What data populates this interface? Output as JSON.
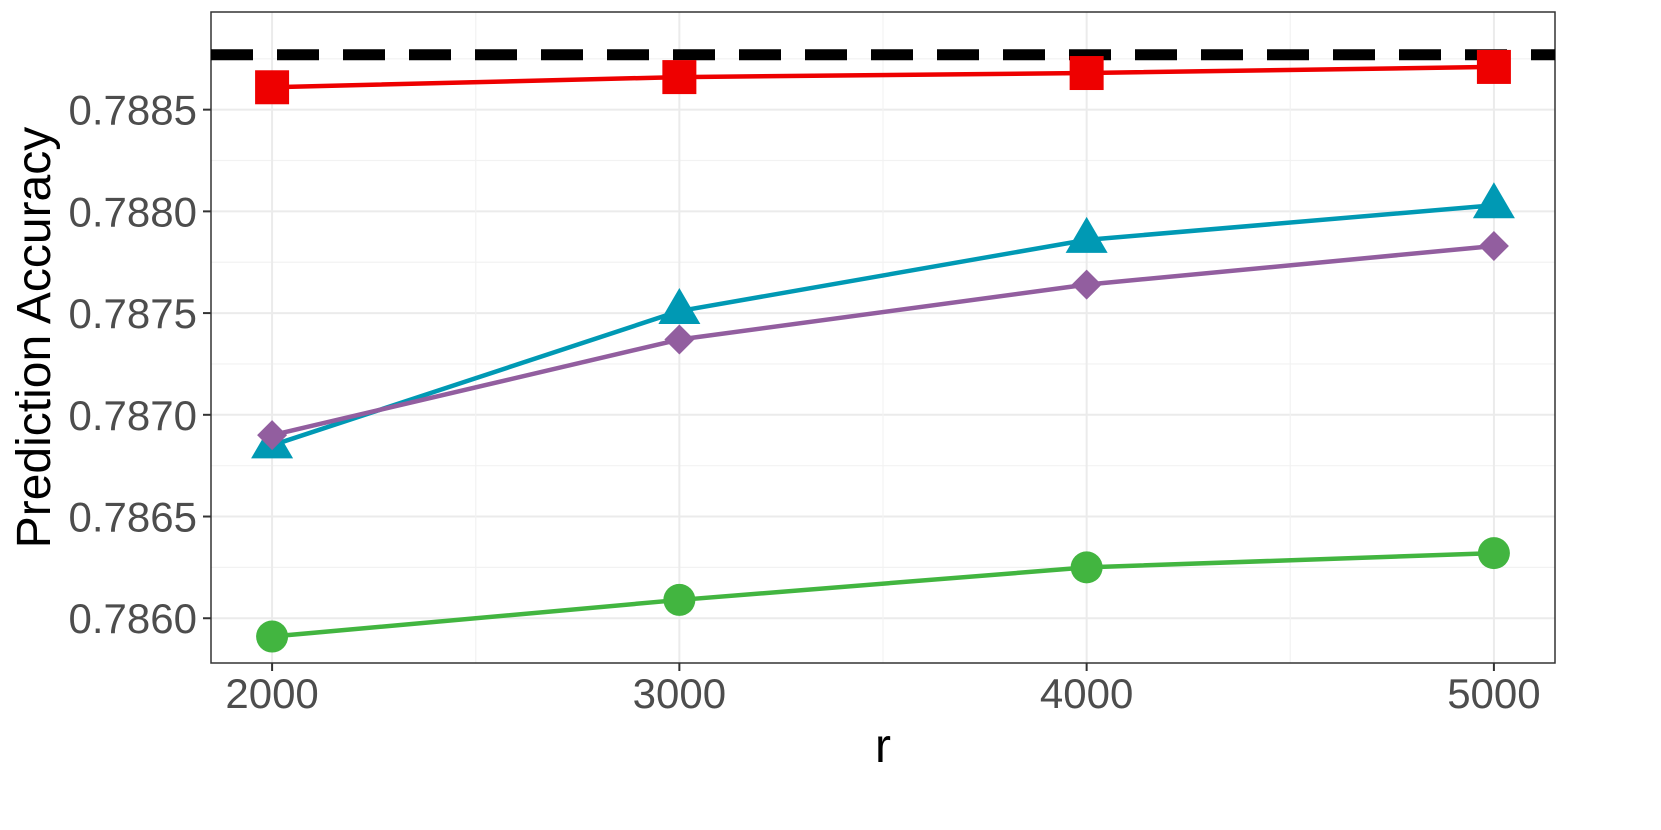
{
  "chart_data": {
    "type": "line",
    "title": "",
    "xlabel": "r",
    "ylabel": "Prediction Accuracy",
    "x": [
      2000,
      3000,
      4000,
      5000
    ],
    "xticks": [
      "2000",
      "3000",
      "4000",
      "5000"
    ],
    "yticks": [
      "0.7860",
      "0.7865",
      "0.7870",
      "0.7875",
      "0.7880",
      "0.7885"
    ],
    "ytick_values": [
      0.786,
      0.7865,
      0.787,
      0.7875,
      0.788,
      0.7885
    ],
    "xlim": [
      1850,
      5150
    ],
    "ylim": [
      0.78578,
      0.78898
    ],
    "grid": true,
    "legend": "none",
    "reference_line": {
      "value": 0.78877,
      "style": "dashed",
      "color": "#000000"
    },
    "series": [
      {
        "color": "#ee0000",
        "marker": "square",
        "values": [
          0.78861,
          0.78866,
          0.78868,
          0.78871
        ]
      },
      {
        "color": "#0099b4",
        "marker": "triangle",
        "values": [
          0.78685,
          0.78751,
          0.78786,
          0.78803
        ]
      },
      {
        "color": "#925e9f",
        "marker": "diamond",
        "values": [
          0.7869,
          0.78737,
          0.78764,
          0.78783
        ]
      },
      {
        "color": "#42b540",
        "marker": "circle",
        "values": [
          0.78591,
          0.78609,
          0.78625,
          0.78632
        ]
      }
    ]
  }
}
